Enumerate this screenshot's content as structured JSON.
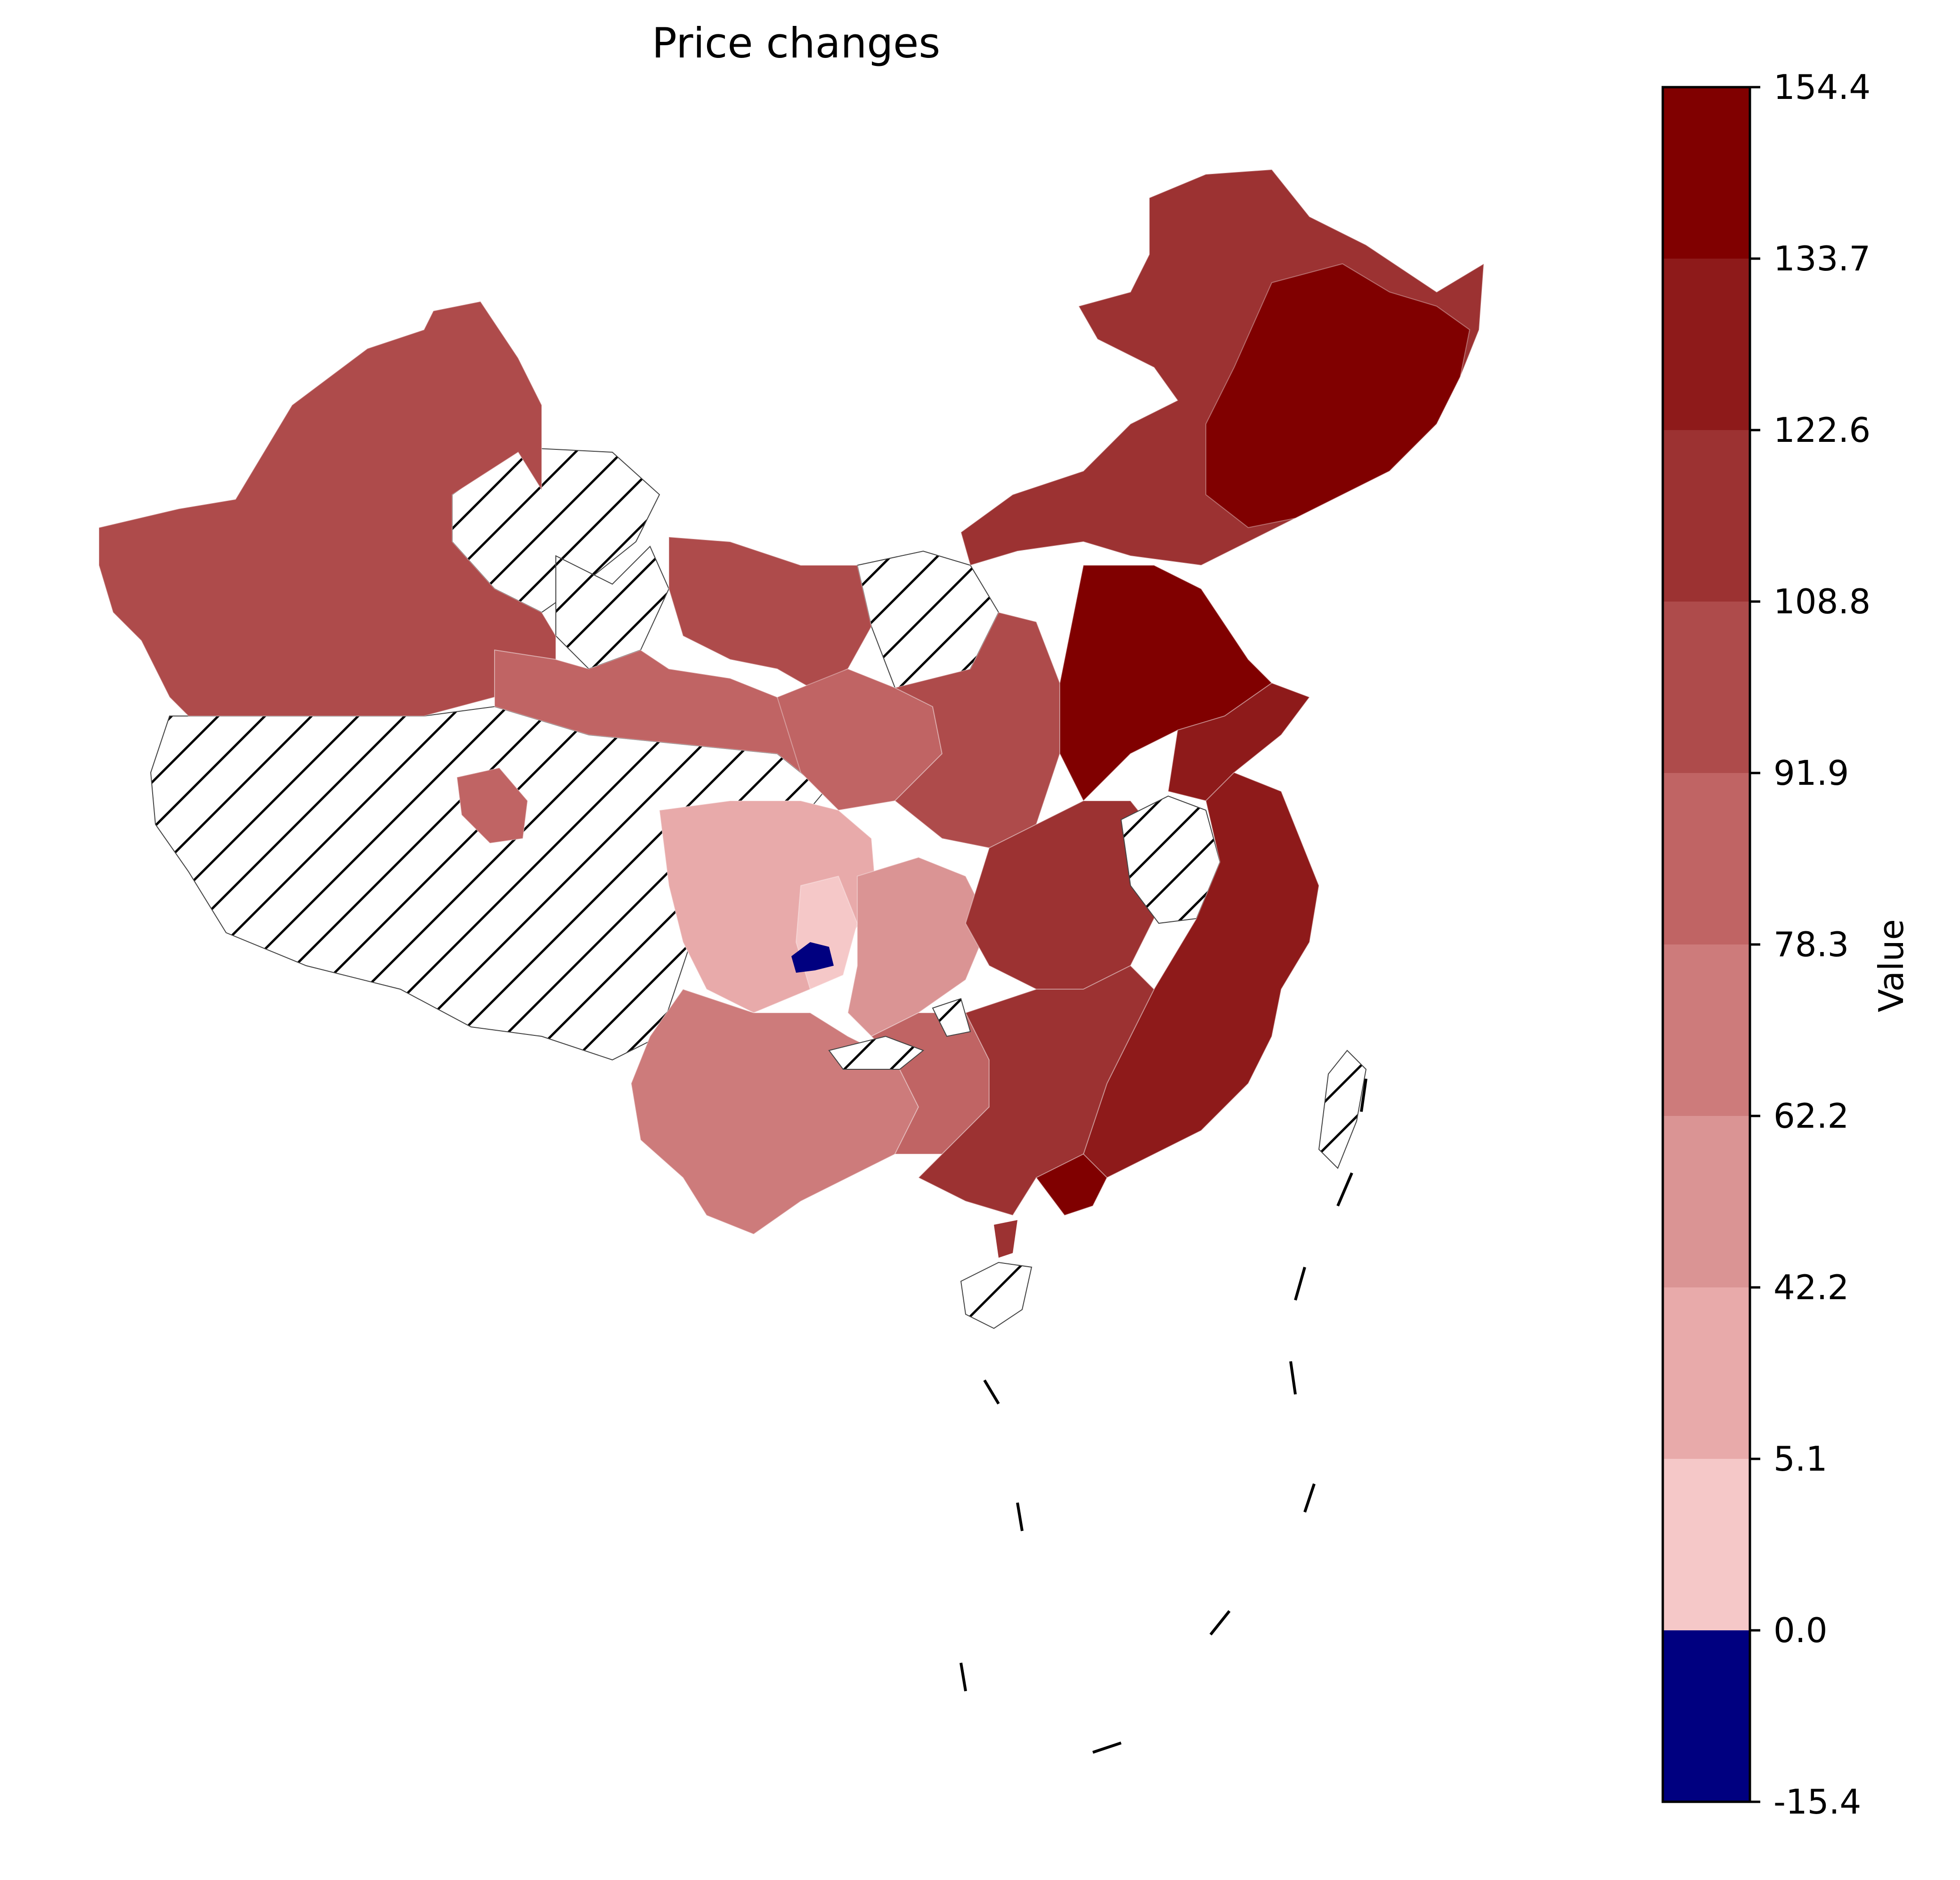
{
  "map": {
    "title": "Price changes",
    "colorbar": {
      "label": "Value",
      "ticks": [
        "154.4",
        "133.7",
        "122.6",
        "108.8",
        "91.9",
        "78.3",
        "62.2",
        "42.2",
        "5.1",
        "0.0",
        "-15.4"
      ],
      "colors": [
        "#800000",
        "#8e1a1a",
        "#9c3232",
        "#ae4b4b",
        "#c06464",
        "#cd7b7b",
        "#da9494",
        "#e8aaaa",
        "#f5c8c8",
        "#000080"
      ],
      "no_data_pattern": "diagonal-hatch"
    },
    "colors": {
      "darkest": "#800000",
      "dark": "#8e1a1a",
      "mid_dark": "#9c3232",
      "mid": "#ae4b4b",
      "mid_light": "#c06464",
      "light": "#cd7b7b",
      "lighter": "#da9494",
      "pale": "#e8aaaa",
      "palest": "#f5c8c8",
      "negative": "#000080"
    }
  }
}
